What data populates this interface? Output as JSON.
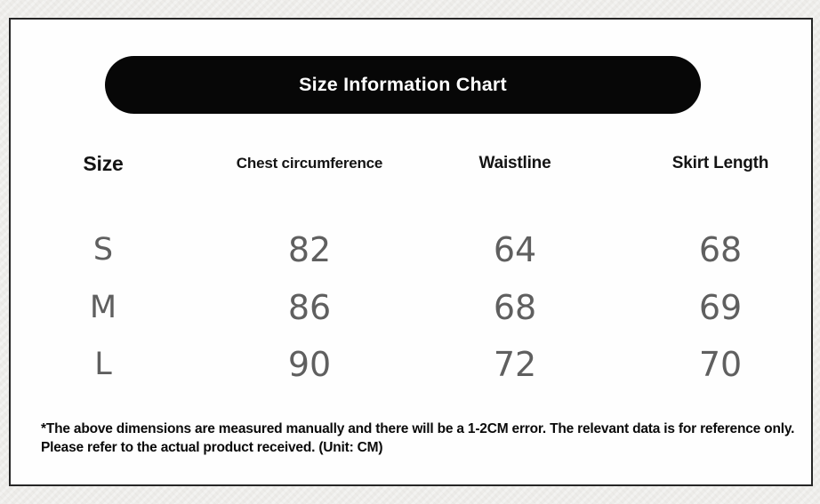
{
  "banner": {
    "title": "Size Information Chart",
    "background": "#070707",
    "text_color": "#ffffff"
  },
  "chart_data": {
    "type": "table",
    "title": "Size Information Chart",
    "columns": [
      "Size",
      "Chest circumference",
      "Waistline",
      "Skirt Length"
    ],
    "rows": [
      [
        "S",
        82,
        64,
        68
      ],
      [
        "M",
        86,
        68,
        69
      ],
      [
        "L",
        90,
        72,
        70
      ]
    ],
    "unit": "CM",
    "footnote": "*The above dimensions are measured manually and there will be a 1-2CM error. The relevant data is for reference only. Please refer to the actual product received. (Unit: CM)"
  },
  "colors": {
    "page_background": "#edece9",
    "panel_background": "#fefefe",
    "frame_border": "#262626",
    "header_text": "#141414",
    "value_text": "#5f5f5f",
    "footnote_text": "#0a0a0a"
  }
}
